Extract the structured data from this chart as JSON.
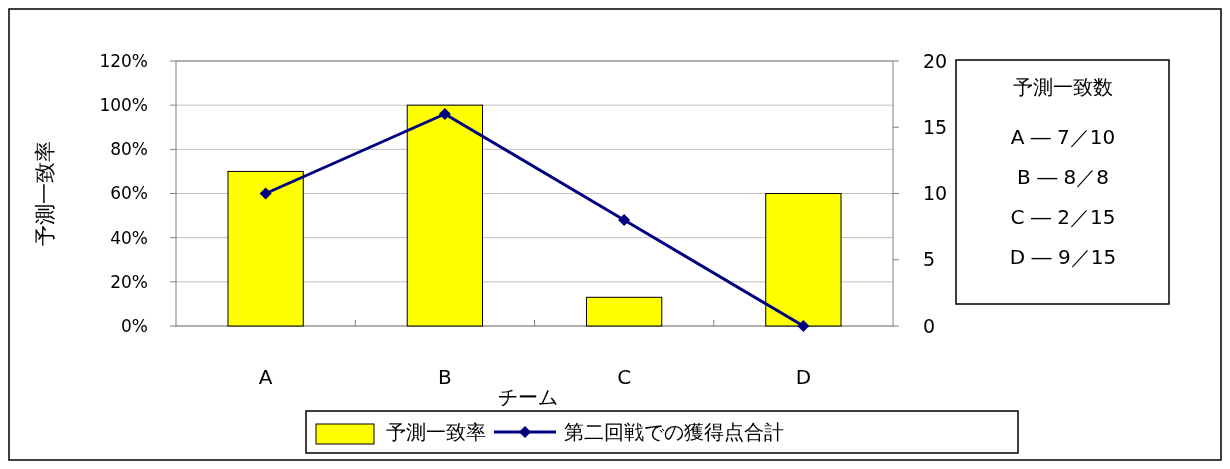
{
  "chart_data": {
    "type": "bar",
    "xlabel": "チーム",
    "ylabel": "予測一致率",
    "categories": [
      "A",
      "B",
      "C",
      "D"
    ],
    "series": [
      {
        "name": "予測一致率",
        "color": "#ffff00",
        "values": [
          70,
          100,
          13,
          60
        ]
      },
      {
        "name": "第二回戦での獲得点合計",
        "type": "line",
        "axis": "y2",
        "color": "#000080",
        "values": [
          10,
          16,
          8,
          0
        ]
      }
    ],
    "ylim": [
      0,
      120
    ],
    "yticks": [
      {
        "value": 0,
        "label": "0%"
      },
      {
        "value": 20,
        "label": "20%"
      },
      {
        "value": 40,
        "label": "40%"
      },
      {
        "value": 60,
        "label": "60%"
      },
      {
        "value": 80,
        "label": "80%"
      },
      {
        "value": 100,
        "label": "100%"
      },
      {
        "value": 120,
        "label": "120%"
      }
    ],
    "y2lim": [
      0,
      20
    ],
    "y2ticks": [
      0,
      5,
      10,
      15,
      20
    ],
    "grid": "y",
    "legend": "bottom",
    "marker": "diamond",
    "annotations": [
      "予測一致数",
      "A ― 7／10",
      "B ― 8／8",
      "C ― 2／15",
      "D ― 9／15"
    ]
  }
}
